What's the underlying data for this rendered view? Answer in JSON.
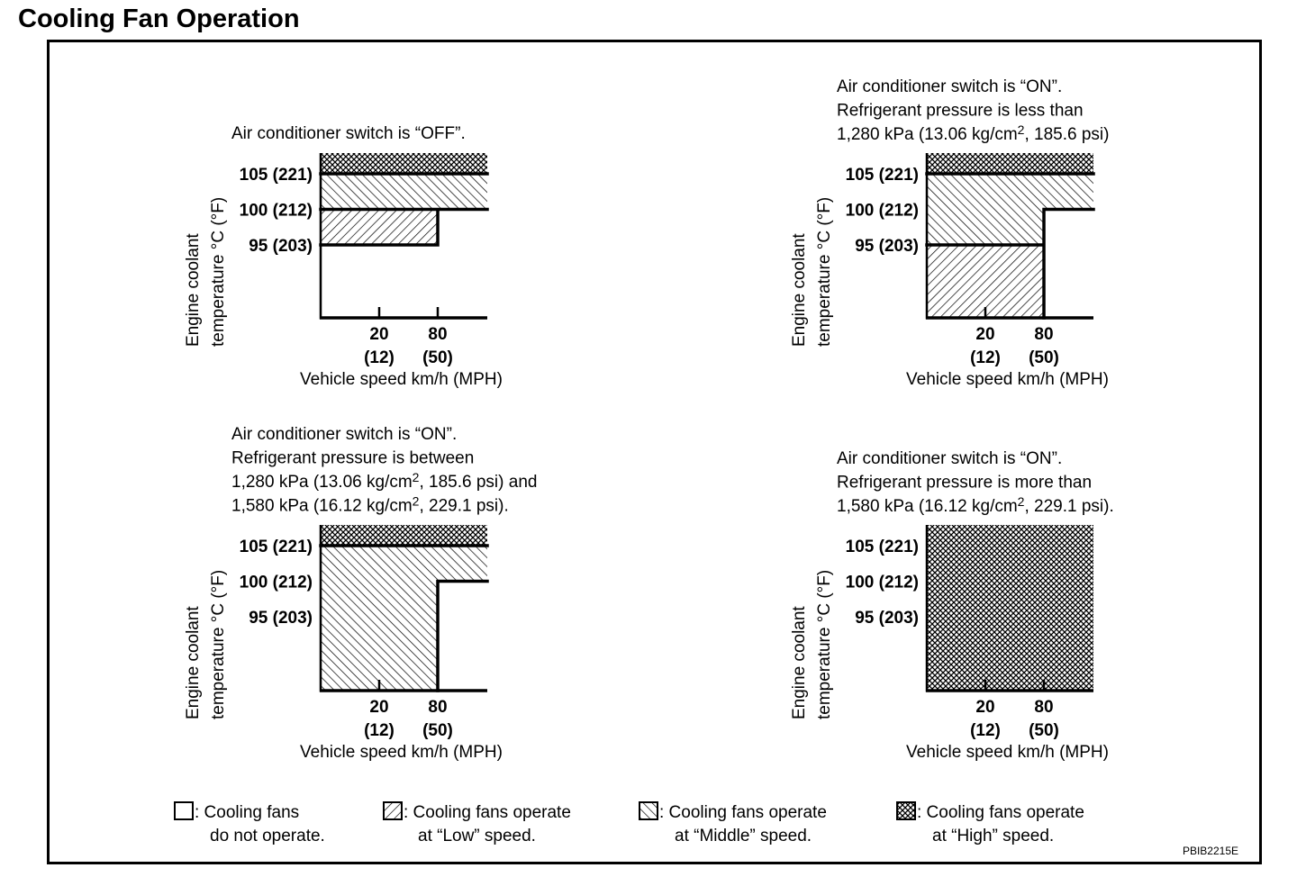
{
  "title": "Cooling Fan Operation",
  "figure_code": "PBIB2215E",
  "colors": {
    "ink": "#000000",
    "paper": "#ffffff"
  },
  "legend": [
    {
      "key": "off",
      "swatch": "blank-swatch",
      "line1": ": Cooling fans",
      "line2": "do not operate."
    },
    {
      "key": "low",
      "swatch": "low-hatch-swatch",
      "line1": ": Cooling fans operate",
      "line2": "at “Low” speed."
    },
    {
      "key": "middle",
      "swatch": "middle-hatch-swatch",
      "line1": ": Cooling fans operate",
      "line2": "at “Middle” speed."
    },
    {
      "key": "high",
      "swatch": "high-crosshatch-swatch",
      "line1": ": Cooling fans operate",
      "line2": "at “High” speed."
    }
  ],
  "chart_data": [
    {
      "type": "heatmap",
      "title_lines": [
        "Air conditioner switch is “OFF”."
      ],
      "title_sups": [],
      "ylabel_lines": [
        "Engine coolant",
        "temperature °C (°F)"
      ],
      "xlabel": "Vehicle speed km/h (MPH)",
      "y_ticks": [
        {
          "value": 105,
          "label": "105 (221)"
        },
        {
          "value": 100,
          "label": "100 (212)"
        },
        {
          "value": 95,
          "label": "95 (203)"
        }
      ],
      "x_ticks": [
        {
          "value": 20,
          "label": "20",
          "sublabel": "(12)"
        },
        {
          "value": 80,
          "label": "80",
          "sublabel": "(50)"
        }
      ],
      "regions": [
        {
          "speed": "all",
          "temp_from": 105,
          "temp_to": "max",
          "mode": "high"
        },
        {
          "speed": "all",
          "temp_from": 100,
          "temp_to": 105,
          "mode": "middle"
        },
        {
          "speed": "0-80",
          "temp_from": 95,
          "temp_to": 100,
          "mode": "low"
        },
        {
          "speed": ">80",
          "temp_from": "min",
          "temp_to": 100,
          "mode": "off"
        },
        {
          "speed": "0-80",
          "temp_from": "min",
          "temp_to": 95,
          "mode": "off"
        }
      ]
    },
    {
      "type": "heatmap",
      "title_lines": [
        "Air conditioner switch is “ON”.",
        "Refrigerant pressure is less than",
        "1,280 kPa (13.06 kg/cm",
        "2",
        ", 185.6 psi)"
      ],
      "ylabel_lines": [
        "Engine coolant",
        "temperature °C (°F)"
      ],
      "xlabel": "Vehicle speed km/h (MPH)",
      "y_ticks": [
        {
          "value": 105,
          "label": "105 (221)"
        },
        {
          "value": 100,
          "label": "100 (212)"
        },
        {
          "value": 95,
          "label": "95 (203)"
        }
      ],
      "x_ticks": [
        {
          "value": 20,
          "label": "20",
          "sublabel": "(12)"
        },
        {
          "value": 80,
          "label": "80",
          "sublabel": "(50)"
        }
      ],
      "regions": [
        {
          "speed": "all",
          "temp_from": 105,
          "temp_to": "max",
          "mode": "high"
        },
        {
          "speed": "all",
          "temp_from": 100,
          "temp_to": 105,
          "mode": "middle"
        },
        {
          "speed": "0-80",
          "temp_from": 95,
          "temp_to": 100,
          "mode": "middle"
        },
        {
          "speed": "0-80",
          "temp_from": "min",
          "temp_to": 95,
          "mode": "low"
        },
        {
          "speed": ">80",
          "temp_from": "min",
          "temp_to": 100,
          "mode": "off"
        }
      ]
    },
    {
      "type": "heatmap",
      "title_lines": [
        "Air conditioner switch is “ON”.",
        "Refrigerant pressure is between",
        "1,280 kPa (13.06 kg/cm",
        "2",
        ", 185.6 psi) and",
        "1,580 kPa (16.12 kg/cm",
        "2",
        ", 229.1 psi)."
      ],
      "ylabel_lines": [
        "Engine coolant",
        "temperature °C (°F)"
      ],
      "xlabel": "Vehicle speed km/h (MPH)",
      "y_ticks": [
        {
          "value": 105,
          "label": "105 (221)"
        },
        {
          "value": 100,
          "label": "100 (212)"
        },
        {
          "value": 95,
          "label": "95 (203)"
        }
      ],
      "x_ticks": [
        {
          "value": 20,
          "label": "20",
          "sublabel": "(12)"
        },
        {
          "value": 80,
          "label": "80",
          "sublabel": "(50)"
        }
      ],
      "regions": [
        {
          "speed": "all",
          "temp_from": 105,
          "temp_to": "max",
          "mode": "high"
        },
        {
          "speed": "all",
          "temp_from": 100,
          "temp_to": 105,
          "mode": "middle"
        },
        {
          "speed": "0-80",
          "temp_from": "min",
          "temp_to": 100,
          "mode": "middle"
        },
        {
          "speed": ">80",
          "temp_from": "min",
          "temp_to": 100,
          "mode": "off"
        }
      ]
    },
    {
      "type": "heatmap",
      "title_lines": [
        "Air conditioner switch is “ON”.",
        "Refrigerant pressure is more than",
        "1,580 kPa (16.12 kg/cm",
        "2",
        ", 229.1 psi)."
      ],
      "ylabel_lines": [
        "Engine coolant",
        "temperature °C (°F)"
      ],
      "xlabel": "Vehicle speed km/h (MPH)",
      "y_ticks": [
        {
          "value": 105,
          "label": "105 (221)"
        },
        {
          "value": 100,
          "label": "100 (212)"
        },
        {
          "value": 95,
          "label": "95 (203)"
        }
      ],
      "x_ticks": [
        {
          "value": 20,
          "label": "20",
          "sublabel": "(12)"
        },
        {
          "value": 80,
          "label": "80",
          "sublabel": "(50)"
        }
      ],
      "regions": [
        {
          "speed": "all",
          "temp_from": "min",
          "temp_to": "max",
          "mode": "high"
        }
      ]
    }
  ]
}
